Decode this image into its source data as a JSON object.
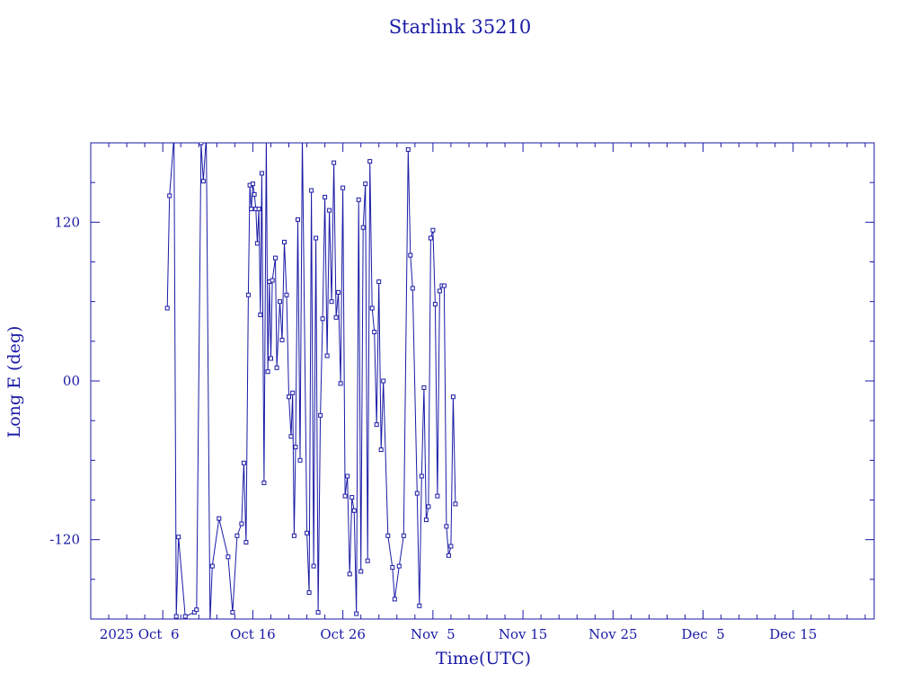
{
  "chart_data": {
    "type": "scatter",
    "title": "Starlink 35210",
    "xlabel": "Time(UTC)",
    "ylabel": "Long E (deg)",
    "x_ticks": [
      "2025 Oct  6",
      "Oct 16",
      "Oct 26",
      "Nov  5",
      "Nov 15",
      "Nov 25",
      "Dec  5",
      "Dec 15"
    ],
    "y_ticks": [
      "-120",
      "00",
      "120"
    ],
    "xlim": [
      "2025-09-28",
      "2025-12-24"
    ],
    "ylim": [
      -180,
      180
    ],
    "grid": false,
    "connected": true,
    "marker": "square",
    "color": "#1a1aa6",
    "series": [
      {
        "points": [
          [
            "2025-10-06 12:00",
            55
          ],
          [
            "2025-10-06 18:00",
            140
          ],
          [
            "2025-10-07 06:00",
            185
          ],
          [
            "2025-10-07 12:00",
            -178
          ],
          [
            "2025-10-07 18:00",
            -118
          ],
          [
            "2025-10-08 12:00",
            -178
          ],
          [
            "2025-10-09 12:00",
            -175
          ],
          [
            "2025-10-09 18:00",
            -173
          ],
          [
            "2025-10-10 06:00",
            180
          ],
          [
            "2025-10-10 12:00",
            151
          ],
          [
            "2025-10-10 20:00",
            185
          ],
          [
            "2025-10-11 06:00",
            -182
          ],
          [
            "2025-10-11 12:00",
            -140
          ],
          [
            "2025-10-12 06:00",
            -104
          ],
          [
            "2025-10-13 06:00",
            -133
          ],
          [
            "2025-10-13 18:00",
            -175
          ],
          [
            "2025-10-14 06:00",
            -117
          ],
          [
            "2025-10-14 18:00",
            -108
          ],
          [
            "2025-10-15 00:00",
            -62
          ],
          [
            "2025-10-15 06:00",
            -122
          ],
          [
            "2025-10-15 12:00",
            65
          ],
          [
            "2025-10-15 16:00",
            148
          ],
          [
            "2025-10-15 20:00",
            130
          ],
          [
            "2025-10-16 00:00",
            149
          ],
          [
            "2025-10-16 04:00",
            141
          ],
          [
            "2025-10-16 08:00",
            130
          ],
          [
            "2025-10-16 12:00",
            104
          ],
          [
            "2025-10-16 16:00",
            130
          ],
          [
            "2025-10-16 20:00",
            50
          ],
          [
            "2025-10-17 00:00",
            157
          ],
          [
            "2025-10-17 06:00",
            -77
          ],
          [
            "2025-10-17 12:00",
            185
          ],
          [
            "2025-10-17 16:00",
            7
          ],
          [
            "2025-10-17 20:00",
            75
          ],
          [
            "2025-10-18 00:00",
            17
          ],
          [
            "2025-10-18 04:00",
            76
          ],
          [
            "2025-10-18 12:00",
            93
          ],
          [
            "2025-10-18 16:00",
            10
          ],
          [
            "2025-10-19 00:00",
            60
          ],
          [
            "2025-10-19 06:00",
            31
          ],
          [
            "2025-10-19 12:00",
            105
          ],
          [
            "2025-10-19 18:00",
            65
          ],
          [
            "2025-10-20 00:00",
            -12
          ],
          [
            "2025-10-20 06:00",
            -42
          ],
          [
            "2025-10-20 10:00",
            -9
          ],
          [
            "2025-10-20 14:00",
            -117
          ],
          [
            "2025-10-20 18:00",
            -50
          ],
          [
            "2025-10-21 00:00",
            122
          ],
          [
            "2025-10-21 06:00",
            -60
          ],
          [
            "2025-10-21 12:00",
            185
          ],
          [
            "2025-10-22 00:00",
            -115
          ],
          [
            "2025-10-22 06:00",
            -160
          ],
          [
            "2025-10-22 12:00",
            144
          ],
          [
            "2025-10-22 18:00",
            -140
          ],
          [
            "2025-10-23 00:00",
            108
          ],
          [
            "2025-10-23 06:00",
            -175
          ],
          [
            "2025-10-23 12:00",
            -26
          ],
          [
            "2025-10-23 18:00",
            47
          ],
          [
            "2025-10-24 00:00",
            139
          ],
          [
            "2025-10-24 06:00",
            19
          ],
          [
            "2025-10-24 12:00",
            129
          ],
          [
            "2025-10-24 18:00",
            60
          ],
          [
            "2025-10-25 00:00",
            165
          ],
          [
            "2025-10-25 06:00",
            48
          ],
          [
            "2025-10-25 12:00",
            67
          ],
          [
            "2025-10-25 18:00",
            -2
          ],
          [
            "2025-10-26 00:00",
            146
          ],
          [
            "2025-10-26 06:00",
            -87
          ],
          [
            "2025-10-26 12:00",
            -72
          ],
          [
            "2025-10-26 18:00",
            -146
          ],
          [
            "2025-10-27 00:00",
            -88
          ],
          [
            "2025-10-27 06:00",
            -98
          ],
          [
            "2025-10-27 12:00",
            -176
          ],
          [
            "2025-10-27 18:00",
            137
          ],
          [
            "2025-10-28 00:00",
            -144
          ],
          [
            "2025-10-28 06:00",
            116
          ],
          [
            "2025-10-28 12:00",
            149
          ],
          [
            "2025-10-28 18:00",
            -136
          ],
          [
            "2025-10-29 00:00",
            166
          ],
          [
            "2025-10-29 06:00",
            55
          ],
          [
            "2025-10-29 12:00",
            37
          ],
          [
            "2025-10-29 18:00",
            -33
          ],
          [
            "2025-10-30 00:00",
            75
          ],
          [
            "2025-10-30 06:00",
            -52
          ],
          [
            "2025-10-30 12:00",
            0
          ],
          [
            "2025-10-31 00:00",
            -117
          ],
          [
            "2025-10-31 12:00",
            -141
          ],
          [
            "2025-10-31 18:00",
            -165
          ],
          [
            "2025-11-01 06:00",
            -140
          ],
          [
            "2025-11-01 18:00",
            -117
          ],
          [
            "2025-11-02 06:00",
            175
          ],
          [
            "2025-11-02 12:00",
            95
          ],
          [
            "2025-11-02 18:00",
            70
          ],
          [
            "2025-11-03 06:00",
            -85
          ],
          [
            "2025-11-03 12:00",
            -170
          ],
          [
            "2025-11-03 18:00",
            -72
          ],
          [
            "2025-11-04 00:00",
            -5
          ],
          [
            "2025-11-04 06:00",
            -105
          ],
          [
            "2025-11-04 12:00",
            -95
          ],
          [
            "2025-11-04 18:00",
            108
          ],
          [
            "2025-11-05 00:00",
            114
          ],
          [
            "2025-11-05 06:00",
            58
          ],
          [
            "2025-11-05 12:00",
            -87
          ],
          [
            "2025-11-05 18:00",
            68
          ],
          [
            "2025-11-06 00:00",
            72
          ],
          [
            "2025-11-06 06:00",
            72
          ],
          [
            "2025-11-06 12:00",
            -110
          ],
          [
            "2025-11-06 18:00",
            -132
          ],
          [
            "2025-11-07 00:00",
            -125
          ],
          [
            "2025-11-07 06:00",
            -12
          ],
          [
            "2025-11-07 12:00",
            -93
          ]
        ]
      }
    ]
  }
}
